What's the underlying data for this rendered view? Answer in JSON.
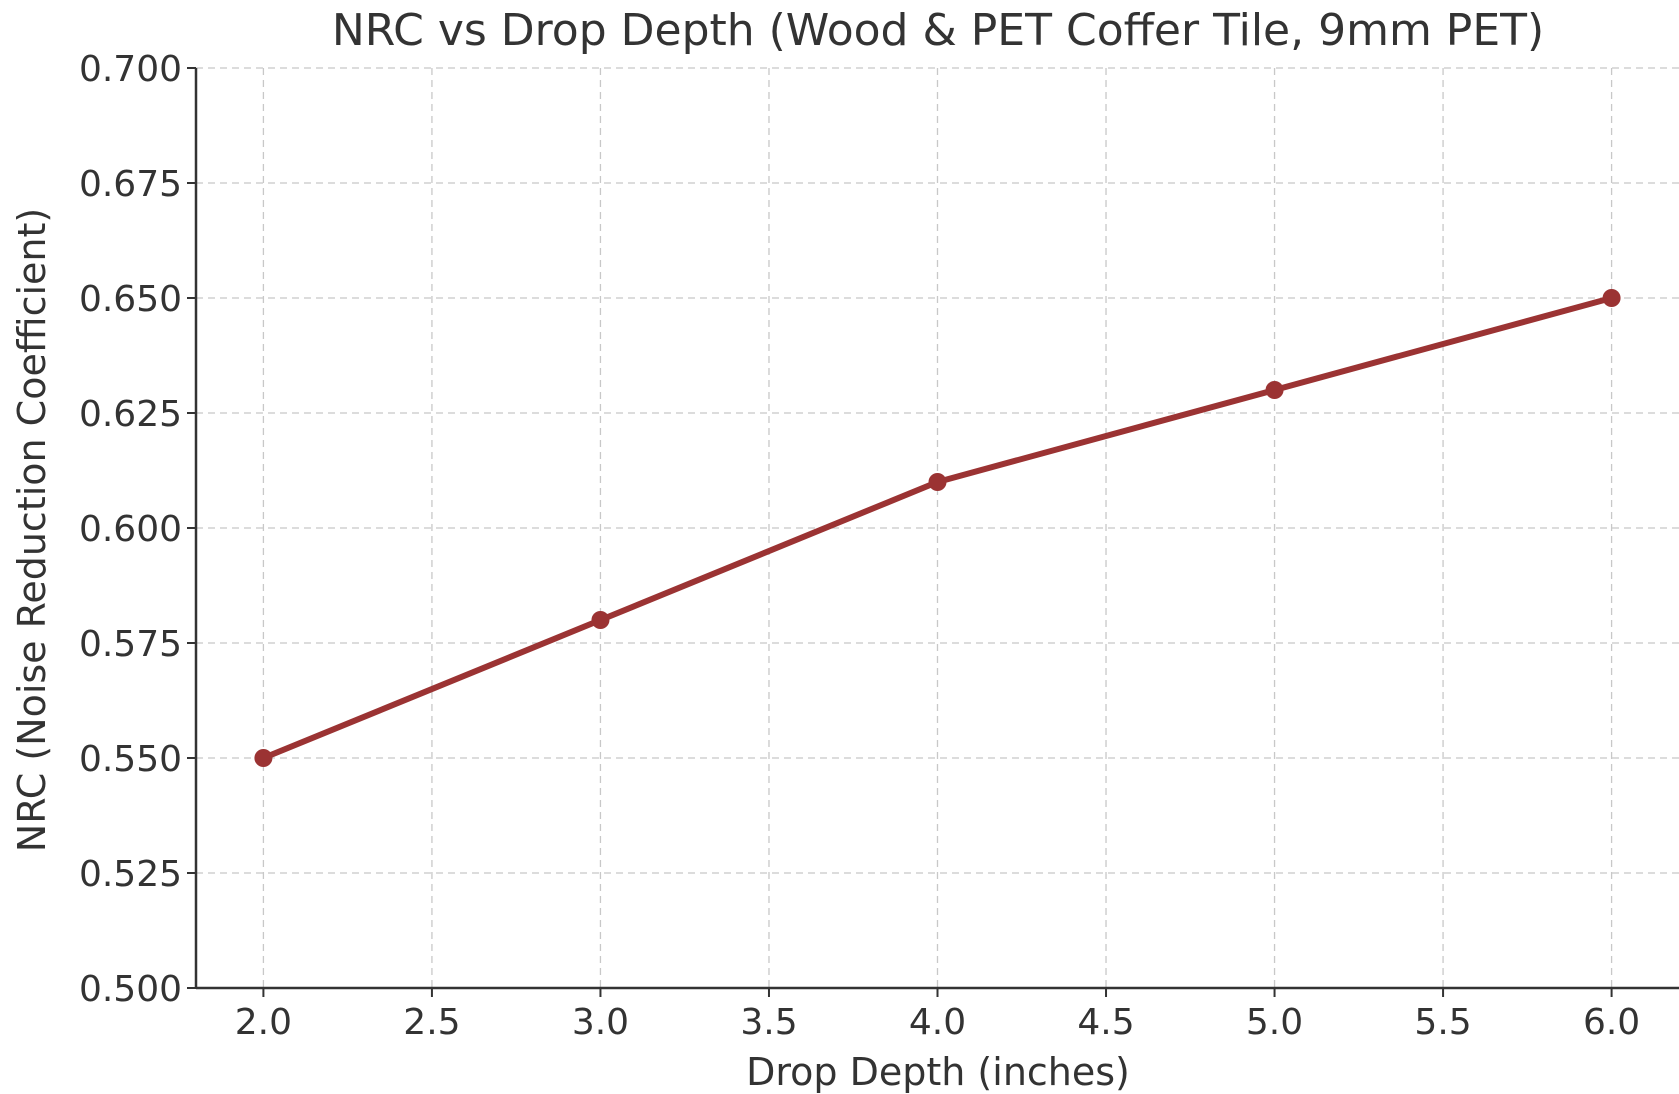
{
  "chart_data": {
    "type": "line",
    "title": "NRC vs Drop Depth (Wood & PET Coffer Tile, 9mm PET)",
    "xlabel": "Drop Depth (inches)",
    "ylabel": "NRC (Noise Reduction Coefficient)",
    "xlim": [
      1.8,
      6.2
    ],
    "ylim": [
      0.5,
      0.7
    ],
    "x_ticks": [
      2.0,
      2.5,
      3.0,
      3.5,
      4.0,
      4.5,
      5.0,
      5.5,
      6.0
    ],
    "x_tick_labels": [
      "2.0",
      "2.5",
      "3.0",
      "3.5",
      "4.0",
      "4.5",
      "5.0",
      "5.5",
      "6.0"
    ],
    "y_ticks": [
      0.5,
      0.525,
      0.55,
      0.575,
      0.6,
      0.625,
      0.65,
      0.675,
      0.7
    ],
    "y_tick_labels": [
      "0.500",
      "0.525",
      "0.550",
      "0.575",
      "0.600",
      "0.625",
      "0.650",
      "0.675",
      "0.700"
    ],
    "grid": true,
    "series": [
      {
        "x": [
          2.0,
          3.0,
          4.0,
          5.0,
          6.0
        ],
        "values": [
          0.55,
          0.58,
          0.61,
          0.63,
          0.65
        ],
        "color": "#9b3333",
        "marker": "circle"
      }
    ]
  }
}
